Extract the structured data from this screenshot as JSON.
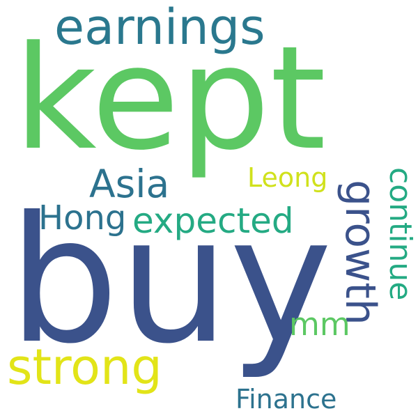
{
  "wordcloud": {
    "words": {
      "kept": {
        "text": "kept",
        "color": "#5cc863"
      },
      "earnings": {
        "text": "earnings",
        "color": "#2a788e"
      },
      "buy": {
        "text": "buy",
        "color": "#3b528b"
      },
      "strong": {
        "text": "strong",
        "color": "#e2e418"
      },
      "asia": {
        "text": "Asia",
        "color": "#2c728e"
      },
      "hong": {
        "text": "Hong",
        "color": "#2c728e"
      },
      "expected": {
        "text": "expected",
        "color": "#24aa83"
      },
      "leong": {
        "text": "Leong",
        "color": "#d0e11c"
      },
      "growth": {
        "text": "growth",
        "color": "#3b528b"
      },
      "continue": {
        "text": "continue",
        "color": "#24aa83"
      },
      "mm": {
        "text": "mm",
        "color": "#5cc863"
      },
      "finance": {
        "text": "Finance",
        "color": "#2c728e"
      }
    }
  }
}
